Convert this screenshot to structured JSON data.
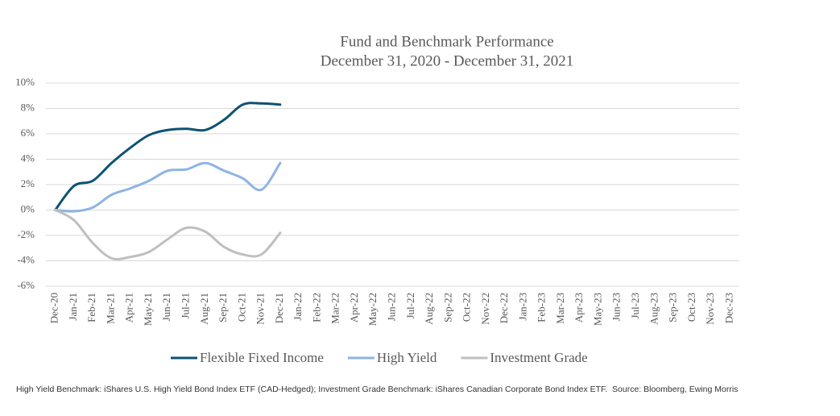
{
  "chart_data": {
    "type": "line",
    "title": "Fund and Benchmark Performance",
    "subtitle": "December 31, 2020 - December 31, 2021",
    "note": "High Yield Benchmark: iShares U.S. High Yield Bond Index ETF (CAD-Hedged); Investment Grade Benchmark: iShares Canadian Corporate Bond Index ETF.  Source: Bloomberg, Ewing Morris",
    "categories": [
      "Dec-20",
      "Jan-21",
      "Feb-21",
      "Mar-21",
      "Apr-21",
      "May-21",
      "Jun-21",
      "Jul-21",
      "Aug-21",
      "Sep-21",
      "Oct-21",
      "Nov-21",
      "Dec-21",
      "Jan-22",
      "Feb-22",
      "Mar-22",
      "Apr-22",
      "May-22",
      "Jun-22",
      "Jul-22",
      "Aug-22",
      "Sep-22",
      "Oct-22",
      "Nov-22",
      "Dec-22",
      "Jan-23",
      "Feb-23",
      "Mar-23",
      "Apr-23",
      "May-23",
      "Jun-23",
      "Jul-23",
      "Aug-23",
      "Sep-23",
      "Oct-23",
      "Nov-23",
      "Dec-23"
    ],
    "series": [
      {
        "name": "Flexible Fixed Income",
        "color": "#0e5272",
        "values": [
          0,
          1.9,
          2.3,
          3.7,
          4.9,
          5.9,
          6.3,
          6.4,
          6.3,
          7.1,
          8.3,
          8.4,
          8.3,
          null,
          null,
          null,
          null,
          null,
          null,
          null,
          null,
          null,
          null,
          null,
          null,
          null,
          null,
          null,
          null,
          null,
          null,
          null,
          null,
          null,
          null,
          null,
          null
        ]
      },
      {
        "name": "High Yield",
        "color": "#8eb4e3",
        "values": [
          0,
          -0.1,
          0.2,
          1.2,
          1.7,
          2.3,
          3.1,
          3.2,
          3.7,
          3.1,
          2.5,
          1.6,
          3.7,
          null,
          null,
          null,
          null,
          null,
          null,
          null,
          null,
          null,
          null,
          null,
          null,
          null,
          null,
          null,
          null,
          null,
          null,
          null,
          null,
          null,
          null,
          null,
          null
        ]
      },
      {
        "name": "Investment Grade",
        "color": "#bfbfbf",
        "values": [
          0,
          -0.8,
          -2.6,
          -3.8,
          -3.7,
          -3.3,
          -2.3,
          -1.4,
          -1.7,
          -2.9,
          -3.5,
          -3.5,
          -1.8,
          null,
          null,
          null,
          null,
          null,
          null,
          null,
          null,
          null,
          null,
          null,
          null,
          null,
          null,
          null,
          null,
          null,
          null,
          null,
          null,
          null,
          null,
          null,
          null
        ]
      }
    ],
    "ylim": [
      -6,
      10
    ],
    "yticks": [
      {
        "value": -6,
        "label": "-6%"
      },
      {
        "value": -4,
        "label": "-4%"
      },
      {
        "value": -2,
        "label": "-2%"
      },
      {
        "value": 0,
        "label": "0%"
      },
      {
        "value": 2,
        "label": "2%"
      },
      {
        "value": 4,
        "label": "4%"
      },
      {
        "value": 6,
        "label": "6%"
      },
      {
        "value": 8,
        "label": "8%"
      },
      {
        "value": 10,
        "label": "10%"
      }
    ],
    "grid": true
  }
}
